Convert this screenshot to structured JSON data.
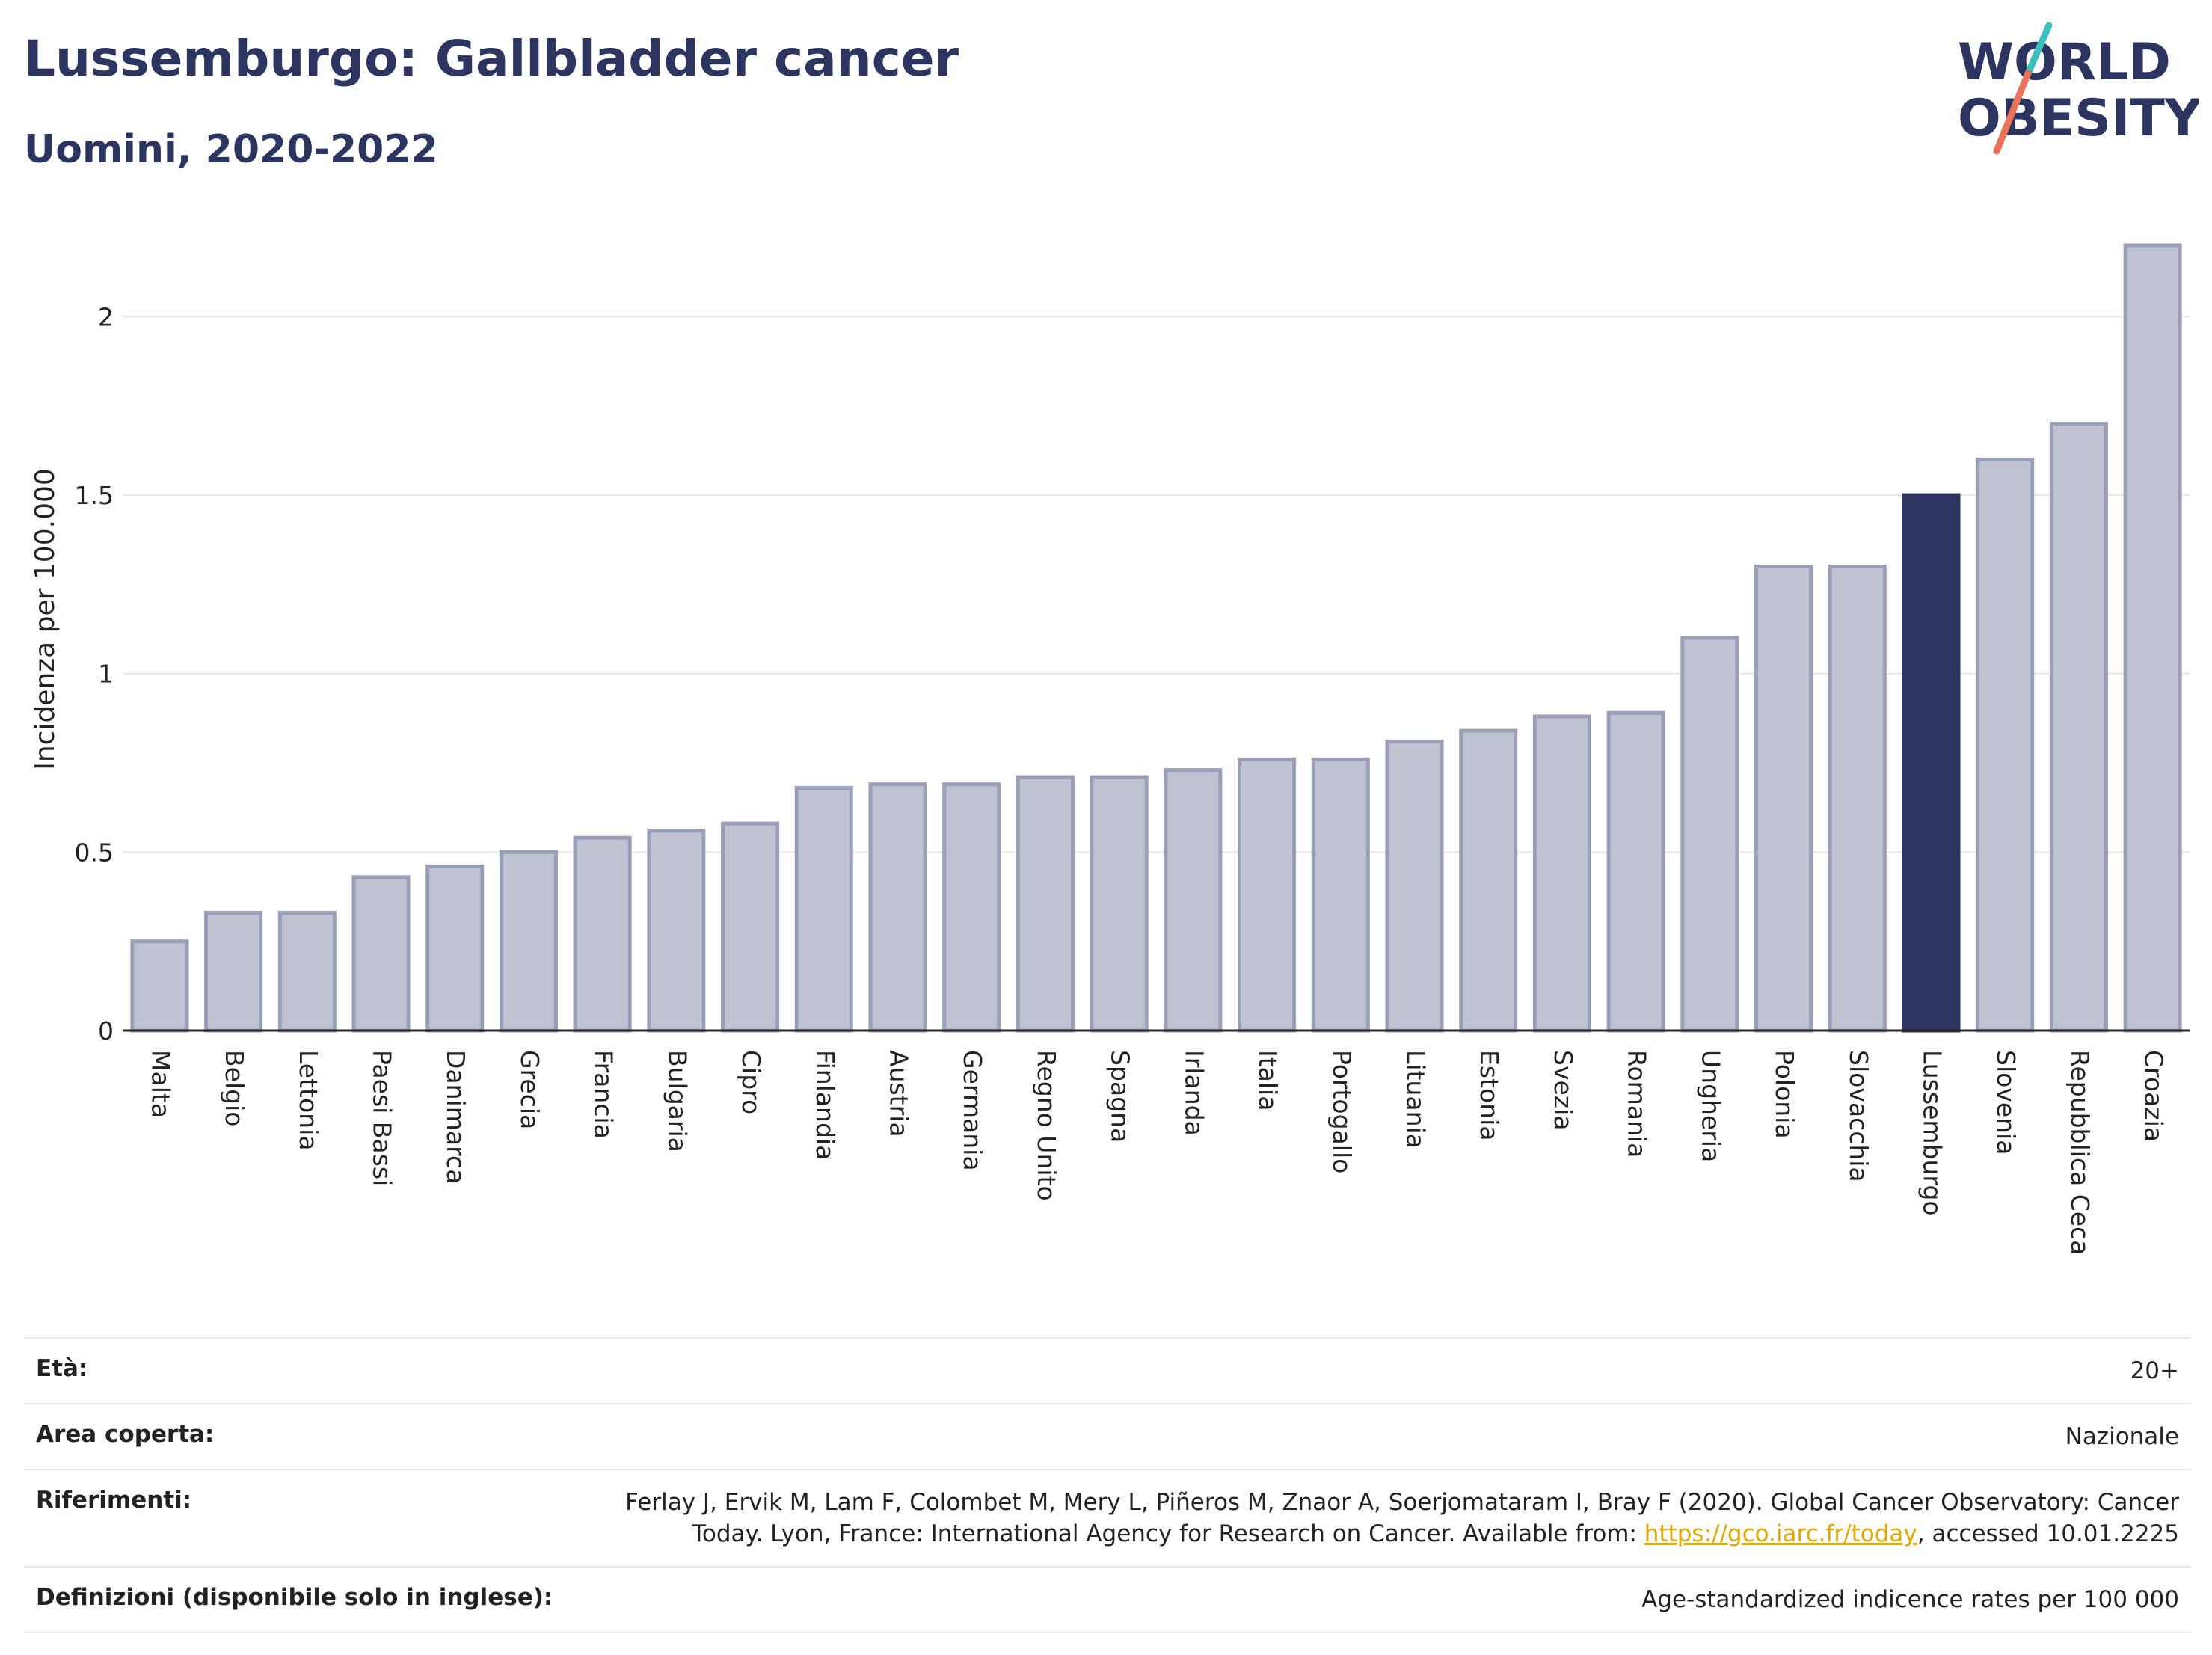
{
  "header": {
    "title": "Lussemburgo: Gallbladder cancer",
    "subtitle": "Uomini, 2020-2022"
  },
  "logo": {
    "line1": "WORLD",
    "line2": "OBESITY",
    "accent_teal": "#3dbdbd",
    "accent_coral": "#e8735a",
    "color": "#2c3560"
  },
  "colors": {
    "bar": "#bfc2d0",
    "bar_stroke": "#9a9fb8",
    "highlight": "#2c3560"
  },
  "chart_data": {
    "type": "bar",
    "ylabel": "Incidenza per 100.000",
    "xlabel": "",
    "ylim": [
      0,
      2.2
    ],
    "yticks": [
      0,
      0.5,
      1,
      1.5,
      2
    ],
    "ytick_labels": [
      "0",
      "0.5",
      "1",
      "1.5",
      "2"
    ],
    "grid": true,
    "highlight": "Lussemburgo",
    "categories": [
      "Malta",
      "Belgio",
      "Lettonia",
      "Paesi Bassi",
      "Danimarca",
      "Grecia",
      "Francia",
      "Bulgaria",
      "Cipro",
      "Finlandia",
      "Austria",
      "Germania",
      "Regno Unito",
      "Spagna",
      "Irlanda",
      "Italia",
      "Portogallo",
      "Lituania",
      "Estonia",
      "Svezia",
      "Romania",
      "Ungheria",
      "Polonia",
      "Slovacchia",
      "Lussemburgo",
      "Slovenia",
      "Repubblica Ceca",
      "Croazia"
    ],
    "values": [
      0.25,
      0.33,
      0.33,
      0.43,
      0.46,
      0.5,
      0.54,
      0.56,
      0.58,
      0.68,
      0.69,
      0.69,
      0.71,
      0.71,
      0.73,
      0.76,
      0.76,
      0.81,
      0.84,
      0.88,
      0.89,
      1.1,
      1.3,
      1.3,
      1.5,
      1.6,
      1.7,
      2.2
    ]
  },
  "meta": {
    "age_label": "Età:",
    "age_value": "20+",
    "area_label": "Area coperta:",
    "area_value": "Nazionale",
    "ref_label": "Riferimenti:",
    "ref_text1": "Ferlay J, Ervik M, Lam F, Colombet M, Mery L, Piñeros M, Znaor A, Soerjomataram I, Bray F (2020). Global Cancer Observatory: Cancer",
    "ref_text2": "Today. Lyon, France: International Agency for Research on Cancer. Available from: ",
    "ref_link": "https://gco.iarc.fr/today",
    "ref_text3": ", accessed 10.01.2225",
    "def_label": "Definizioni (disponibile solo in inglese):",
    "def_value": "Age-standardized indicence rates per 100 000"
  }
}
